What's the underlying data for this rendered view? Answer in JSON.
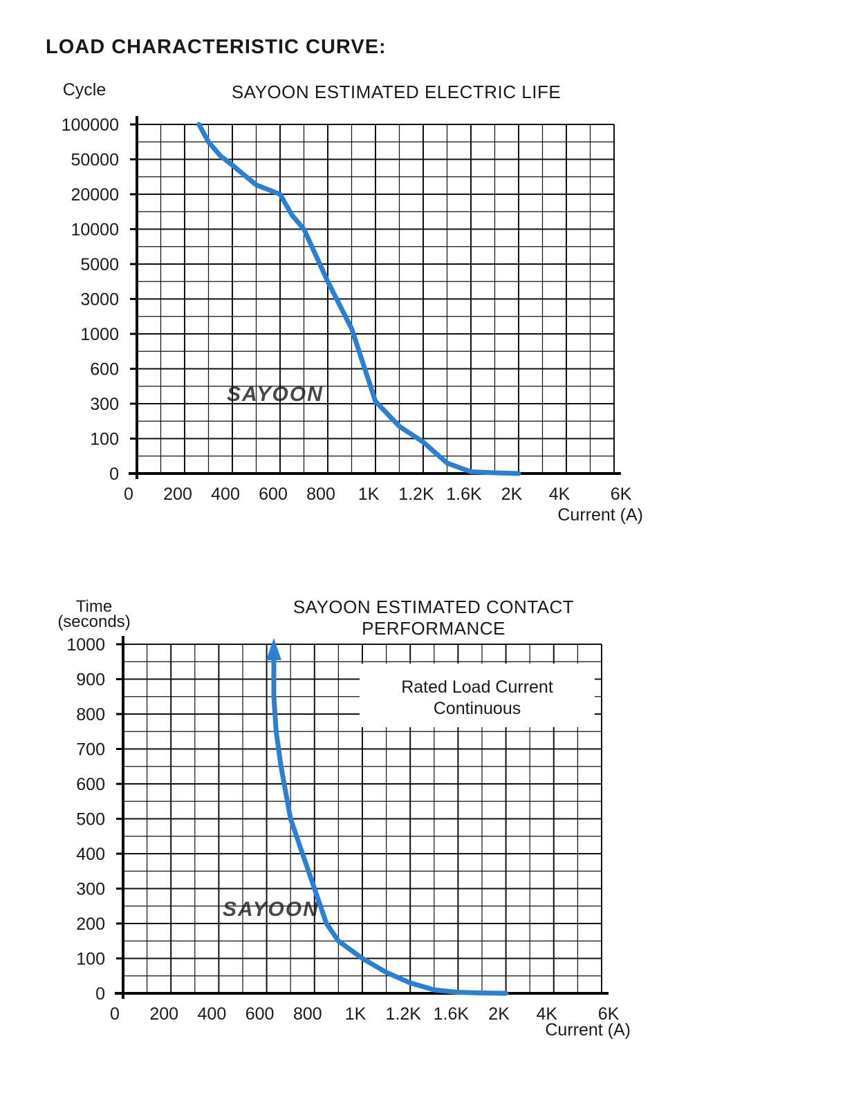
{
  "heading": "LOAD CHARACTERISTIC CURVE:",
  "colors": {
    "curve": "#2b7fd4",
    "grid": "#111111",
    "watermark": "#b9cde8"
  },
  "watermark": "SAYOON",
  "chart_data": [
    {
      "type": "line",
      "title": "SAYOON ESTIMATED ELECTRIC LIFE",
      "ylabel": "Cycle",
      "xlabel": "Current (A)",
      "grid": true,
      "x_ticks": [
        "0",
        "200",
        "400",
        "600",
        "800",
        "1K",
        "1.2K",
        "1.6K",
        "2K",
        "4K",
        "6K"
      ],
      "y_ticks": [
        "0",
        "100",
        "300",
        "600",
        "1000",
        "3000",
        "5000",
        "10000",
        "20000",
        "50000",
        "100000"
      ],
      "series": [
        {
          "x": [
            260,
            300,
            350,
            400,
            500,
            600,
            650,
            700,
            800,
            900,
            1000,
            1100,
            1200,
            1400,
            1600,
            1800,
            2000
          ],
          "y": [
            100000,
            75000,
            55000,
            45000,
            28000,
            20000,
            14000,
            10000,
            4000,
            1300,
            320,
            170,
            90,
            30,
            5,
            2,
            0
          ]
        }
      ]
    },
    {
      "type": "line",
      "title": "SAYOON ESTIMATED CONTACT PERFORMANCE",
      "title_lines": [
        "SAYOON ESTIMATED CONTACT",
        "PERFORMANCE"
      ],
      "ylabel": "Time (seconds)",
      "ylabel_lines": [
        "Time",
        "(seconds)"
      ],
      "xlabel": "Current (A)",
      "grid": true,
      "annotation_lines": [
        "Rated Load Current",
        "Continuous"
      ],
      "x_ticks": [
        "0",
        "200",
        "400",
        "600",
        "800",
        "1K",
        "1.2K",
        "1.6K",
        "2K",
        "4K",
        "6K"
      ],
      "y_ticks": [
        "0",
        "100",
        "200",
        "300",
        "400",
        "500",
        "600",
        "700",
        "800",
        "900",
        "1000"
      ],
      "ylim": [
        0,
        1000
      ],
      "series": [
        {
          "x": [
            630,
            630,
            640,
            660,
            700,
            750,
            800,
            850,
            900,
            1000,
            1100,
            1200,
            1400,
            1600,
            1800,
            2000
          ],
          "y": [
            990,
            850,
            750,
            650,
            500,
            400,
            300,
            200,
            150,
            100,
            60,
            30,
            10,
            3,
            1,
            0
          ]
        }
      ]
    }
  ]
}
